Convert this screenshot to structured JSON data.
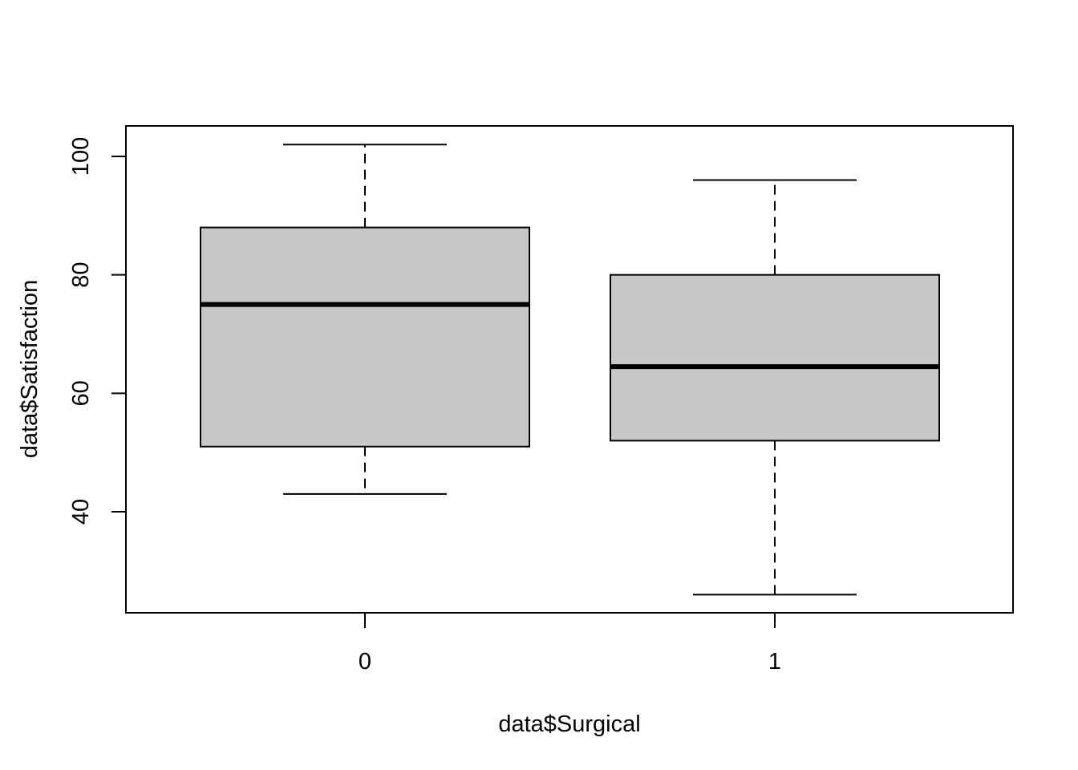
{
  "chart_data": {
    "type": "boxplot",
    "title": "",
    "xlabel": "data$Surgical",
    "ylabel": "data$Satisfaction",
    "categories": [
      "0",
      "1"
    ],
    "boxes": [
      {
        "category": "0",
        "whisker_low": 43,
        "q1": 51,
        "median": 75,
        "q3": 88,
        "whisker_high": 102
      },
      {
        "category": "1",
        "whisker_low": 26,
        "q1": 52,
        "median": 64.5,
        "q3": 80,
        "whisker_high": 96
      }
    ],
    "ylim": [
      23,
      105
    ],
    "y_ticks": [
      40,
      60,
      80,
      100
    ],
    "y_tick_labels": [
      "40",
      "60",
      "80",
      "100"
    ],
    "grid": false,
    "colors": {
      "box_fill": "#c8c8c8",
      "line": "#000000",
      "background": "#ffffff"
    }
  }
}
